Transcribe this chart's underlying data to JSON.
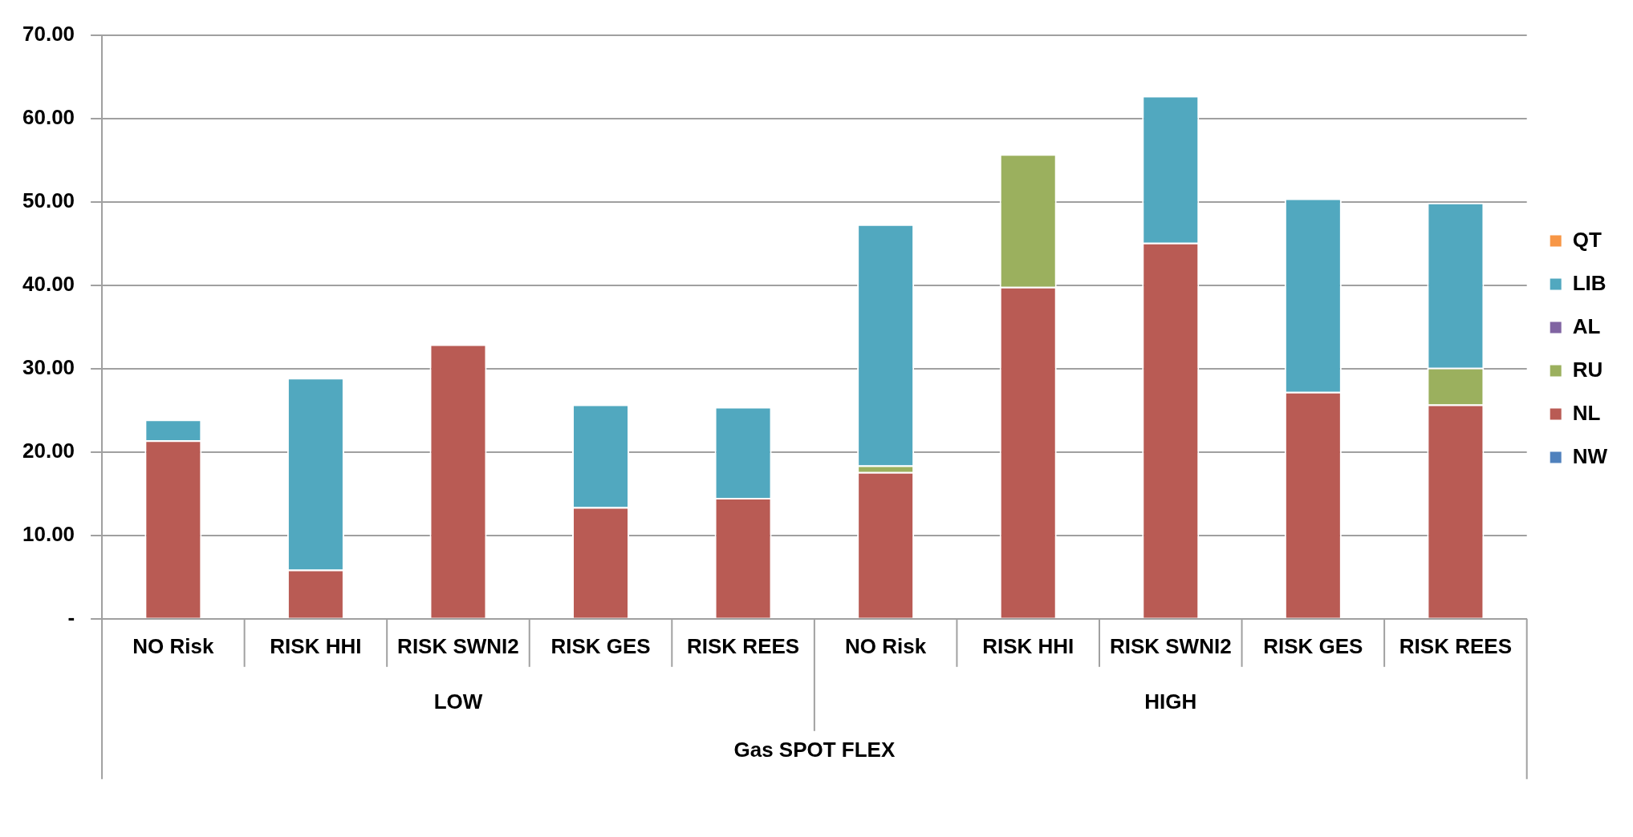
{
  "chart_data": {
    "type": "bar",
    "stacked": true,
    "xlabel": "Gas SPOT FLEX",
    "annotations": [
      "LOW",
      "HIGH"
    ],
    "categories": [
      "NO Risk",
      "RISK HHI",
      "RISK SWNI2",
      "RISK GES",
      "RISK REES",
      "NO Risk",
      "RISK HHI",
      "RISK SWNI2",
      "RISK GES",
      "RISK REES"
    ],
    "series": [
      {
        "name": "NW",
        "color": "#4f81bd",
        "values": [
          0,
          0,
          0,
          0,
          0,
          0,
          0,
          0,
          0,
          0
        ]
      },
      {
        "name": "NL",
        "color": "#b95b54",
        "values": [
          21.4,
          5.9,
          32.9,
          13.4,
          14.5,
          17.6,
          39.8,
          45.1,
          27.2,
          25.7
        ]
      },
      {
        "name": "RU",
        "color": "#9bb05e",
        "values": [
          0,
          0,
          0,
          0,
          0,
          0.8,
          15.9,
          0,
          0,
          4.4
        ]
      },
      {
        "name": "AL",
        "color": "#8064a2",
        "values": [
          0,
          0,
          0,
          0,
          0,
          0,
          0,
          0,
          0,
          0
        ]
      },
      {
        "name": "LIB",
        "color": "#51a8bf",
        "values": [
          2.5,
          23.0,
          0,
          12.3,
          10.9,
          28.9,
          0,
          17.6,
          23.2,
          19.8
        ]
      },
      {
        "name": "QT",
        "color": "#f79646",
        "values": [
          0,
          0,
          0,
          0,
          0,
          0,
          0,
          0,
          0,
          0
        ]
      }
    ],
    "ylim": [
      0,
      70
    ],
    "yticks": [
      {
        "value": 0,
        "label": "-"
      },
      {
        "value": 10,
        "label": "10.00"
      },
      {
        "value": 20,
        "label": "20.00"
      },
      {
        "value": 30,
        "label": "30.00"
      },
      {
        "value": 40,
        "label": "40.00"
      },
      {
        "value": 50,
        "label": "50.00"
      },
      {
        "value": 60,
        "label": "60.00"
      },
      {
        "value": 70,
        "label": "70.00"
      }
    ],
    "grid": "y",
    "legend": "right"
  }
}
